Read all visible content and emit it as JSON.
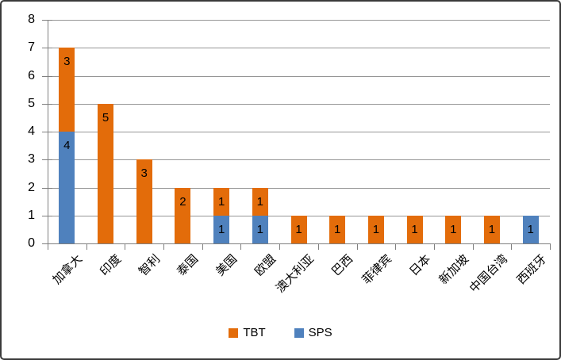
{
  "chart_data": {
    "type": "bar",
    "stacked": true,
    "title": "",
    "xlabel": "",
    "ylabel": "",
    "categories": [
      "加拿大",
      "印度",
      "智利",
      "泰国",
      "美国",
      "欧盟",
      "澳大利亚",
      "巴西",
      "菲律宾",
      "日本",
      "新加坡",
      "中国台湾",
      "西班牙"
    ],
    "series": [
      {
        "name": "TBT",
        "color": "#E36C0A",
        "values": [
          3,
          5,
          3,
          2,
          1,
          1,
          1,
          1,
          1,
          1,
          1,
          1,
          0
        ]
      },
      {
        "name": "SPS",
        "color": "#4F81BD",
        "values": [
          4,
          0,
          0,
          0,
          1,
          1,
          0,
          0,
          0,
          0,
          0,
          0,
          1
        ]
      }
    ],
    "stack_bottom_to_top": [
      "SPS",
      "TBT"
    ],
    "totals": [
      7,
      5,
      3,
      2,
      2,
      2,
      1,
      1,
      1,
      1,
      1,
      1,
      1
    ],
    "ylim": [
      0,
      8
    ],
    "yticks": [
      "0",
      "1",
      "2",
      "3",
      "4",
      "5",
      "6",
      "7",
      "8"
    ],
    "grid": true,
    "data_labels": "inside-end",
    "legend_position": "bottom"
  },
  "style": {
    "gridline_color": "#969696",
    "axis_color": "#808080",
    "text_color": "#000000",
    "background": "#ffffff",
    "border_color": "#3a3a3a"
  }
}
